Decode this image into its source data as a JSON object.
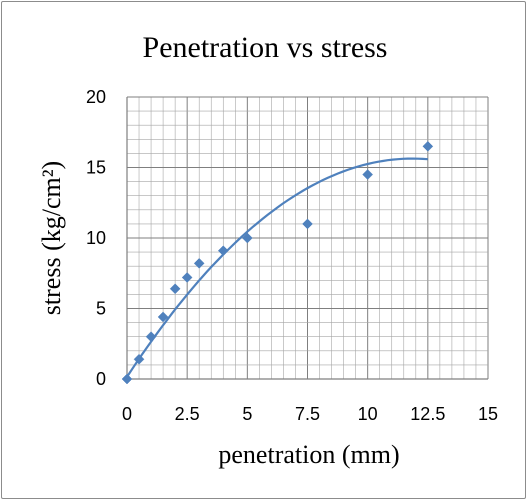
{
  "chart_data": {
    "type": "scatter",
    "title": "Penetration vs stress",
    "xlabel": "penetration (mm)",
    "ylabel": "stress (kg/cm²)",
    "xlim": [
      0,
      15
    ],
    "ylim": [
      0,
      20
    ],
    "xticks": [
      "0",
      "2.5",
      "5",
      "7.5",
      "10",
      "12.5",
      "15"
    ],
    "yticks": [
      "0",
      "5",
      "10",
      "15",
      "20"
    ],
    "grid": true,
    "minor_grid": true,
    "legend": "none",
    "series": [
      {
        "marker": "diamond",
        "color": "#4f81bd",
        "points": [
          [
            0,
            0
          ],
          [
            0.5,
            1.4
          ],
          [
            1,
            3.0
          ],
          [
            1.5,
            4.4
          ],
          [
            2,
            6.4
          ],
          [
            2.5,
            7.2
          ],
          [
            3,
            8.2
          ],
          [
            4,
            9.1
          ],
          [
            5,
            10.0
          ],
          [
            7.5,
            11.0
          ],
          [
            10,
            14.5
          ],
          [
            12.5,
            16.5
          ]
        ]
      }
    ],
    "trendline": {
      "type": "polynomial",
      "order": 2,
      "color": "#4f81bd",
      "coefficients": [
        0.15,
        2.61,
        -0.11
      ],
      "x_range": [
        0,
        12.5
      ]
    }
  }
}
